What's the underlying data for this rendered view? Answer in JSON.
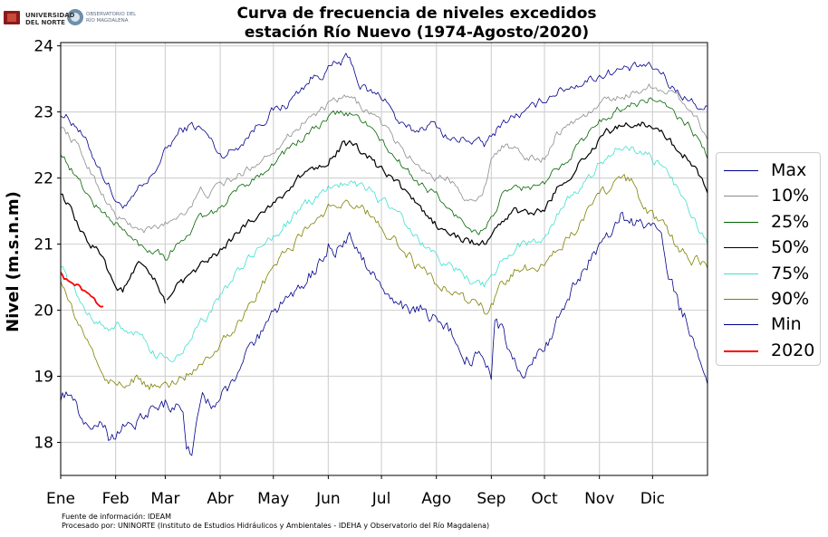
{
  "logos": {
    "left_text": "UNIVERSIDAD\nDEL NORTE",
    "right_text": "OBSERVATORIO DEL\nRÍO MAGDALENA"
  },
  "chart_data": {
    "type": "line",
    "title": "Curva de frecuencia de niveles excedidos",
    "subtitle": "estación Río Nuevo (1974-Agosto/2020)",
    "xlabel": "",
    "ylabel": "Nivel (m.s.n.m)",
    "x_ticks": [
      "Ene",
      "Feb",
      "Mar",
      "Abr",
      "May",
      "Jun",
      "Jul",
      "Ago",
      "Sep",
      "Oct",
      "Nov",
      "Dic"
    ],
    "x_tick_days": [
      1,
      32,
      60,
      91,
      121,
      152,
      182,
      213,
      244,
      274,
      305,
      335
    ],
    "xlim": [
      1,
      366
    ],
    "ylim": [
      17.5,
      24.05
    ],
    "y_ticks": [
      18,
      19,
      20,
      21,
      22,
      23,
      24
    ],
    "grid": true,
    "legend_position": "right",
    "series": [
      {
        "name": "Max",
        "color": "#00008b",
        "width": 0.8,
        "noise": 0.06,
        "x": [
          1,
          10,
          20,
          28,
          33,
          40,
          45,
          50,
          60,
          68,
          75,
          80,
          85,
          91,
          96,
          100,
          105,
          112,
          120,
          128,
          135,
          142,
          150,
          155,
          160,
          162,
          165,
          170,
          175,
          180,
          185,
          190,
          195,
          200,
          207,
          213,
          220,
          225,
          230,
          235,
          240,
          244,
          250,
          258,
          265,
          274,
          280,
          290,
          300,
          305,
          310,
          320,
          325,
          330,
          335,
          340,
          345,
          350,
          355,
          360,
          366
        ],
        "y": [
          23.0,
          22.8,
          22.3,
          21.9,
          21.6,
          21.6,
          21.8,
          21.9,
          22.4,
          22.7,
          22.8,
          22.75,
          22.6,
          22.35,
          22.4,
          22.45,
          22.6,
          22.8,
          23.0,
          23.1,
          23.3,
          23.5,
          23.6,
          23.7,
          23.75,
          23.8,
          23.75,
          23.4,
          23.3,
          23.25,
          23.2,
          22.9,
          22.75,
          22.7,
          22.8,
          22.8,
          22.6,
          22.55,
          22.6,
          22.55,
          22.5,
          22.6,
          22.85,
          22.95,
          23.0,
          23.2,
          23.3,
          23.4,
          23.5,
          23.55,
          23.6,
          23.65,
          23.65,
          23.7,
          23.65,
          23.6,
          23.4,
          23.3,
          23.2,
          23.1,
          23.05
        ]
      },
      {
        "name": "10%",
        "color": "#8c8c8c",
        "width": 0.8,
        "noise": 0.05,
        "x": [
          1,
          10,
          20,
          28,
          33,
          40,
          45,
          50,
          60,
          68,
          75,
          80,
          85,
          91,
          100,
          110,
          120,
          130,
          140,
          150,
          155,
          160,
          165,
          170,
          175,
          180,
          190,
          200,
          213,
          220,
          225,
          230,
          235,
          240,
          244,
          250,
          258,
          265,
          274,
          280,
          290,
          300,
          305,
          310,
          320,
          330,
          335,
          340,
          345,
          350,
          355,
          360,
          366
        ],
        "y": [
          22.8,
          22.5,
          22.0,
          21.6,
          21.4,
          21.3,
          21.2,
          21.2,
          21.3,
          21.45,
          21.6,
          21.8,
          21.75,
          21.9,
          22.0,
          22.2,
          22.4,
          22.65,
          22.9,
          23.05,
          23.15,
          23.2,
          23.2,
          23.1,
          23.0,
          22.9,
          22.55,
          22.25,
          22.0,
          22.0,
          21.9,
          21.7,
          21.6,
          21.85,
          22.3,
          22.5,
          22.4,
          22.3,
          22.3,
          22.65,
          22.85,
          23.0,
          23.1,
          23.2,
          23.25,
          23.35,
          23.4,
          23.35,
          23.3,
          23.2,
          23.1,
          22.9,
          22.6
        ]
      },
      {
        "name": "25%",
        "color": "#006400",
        "width": 0.8,
        "noise": 0.05,
        "x": [
          1,
          10,
          20,
          28,
          33,
          40,
          45,
          50,
          55,
          60,
          65,
          70,
          75,
          80,
          85,
          91,
          100,
          110,
          120,
          130,
          140,
          150,
          155,
          160,
          165,
          170,
          175,
          180,
          190,
          200,
          210,
          213,
          220,
          225,
          230,
          235,
          240,
          244,
          250,
          258,
          265,
          274,
          280,
          290,
          300,
          305,
          310,
          320,
          330,
          335,
          340,
          345,
          350,
          355,
          360,
          366
        ],
        "y": [
          22.4,
          22.0,
          21.6,
          21.4,
          21.3,
          21.1,
          21.0,
          20.9,
          20.95,
          20.8,
          20.95,
          21.1,
          21.2,
          21.45,
          21.4,
          21.55,
          21.8,
          22.0,
          22.2,
          22.45,
          22.65,
          22.85,
          22.95,
          23.0,
          22.95,
          22.9,
          22.8,
          22.6,
          22.3,
          22.0,
          21.8,
          21.75,
          21.5,
          21.4,
          21.3,
          21.2,
          21.2,
          21.4,
          21.7,
          21.85,
          21.85,
          21.9,
          22.1,
          22.4,
          22.7,
          22.85,
          22.95,
          23.1,
          23.15,
          23.2,
          23.15,
          23.0,
          22.9,
          22.8,
          22.6,
          22.35
        ]
      },
      {
        "name": "50%",
        "color": "#000000",
        "width": 1.2,
        "noise": 0.05,
        "x": [
          1,
          5,
          10,
          15,
          20,
          25,
          28,
          32,
          36,
          40,
          45,
          50,
          55,
          60
        ],
        "y": [
          21.8,
          21.6,
          21.3,
          21.05,
          20.95,
          20.85,
          20.6,
          20.35,
          20.3,
          20.45,
          20.7,
          20.55,
          20.4,
          20.1
        ]
      },
      {
        "name": "50%",
        "color": "#000000",
        "width": 1.2,
        "noise": 0.05,
        "x": [
          61,
          66,
          70,
          75,
          80,
          85,
          91,
          100,
          110,
          120,
          130,
          140,
          150,
          155,
          160,
          165,
          170,
          175,
          180,
          190,
          200,
          210,
          220,
          225,
          230,
          240,
          244,
          250,
          258,
          265,
          274,
          280,
          290,
          300,
          305,
          310,
          320,
          330,
          335,
          340,
          345,
          350,
          355,
          360,
          366
        ],
        "y": [
          20.2,
          20.35,
          20.4,
          20.5,
          20.7,
          20.75,
          20.9,
          21.15,
          21.4,
          21.6,
          21.85,
          22.1,
          22.25,
          22.35,
          22.5,
          22.5,
          22.4,
          22.3,
          22.15,
          21.95,
          21.65,
          21.35,
          21.15,
          21.1,
          21.05,
          21.0,
          21.1,
          21.35,
          21.5,
          21.45,
          21.5,
          21.8,
          22.1,
          22.4,
          22.6,
          22.7,
          22.8,
          22.85,
          22.8,
          22.7,
          22.55,
          22.4,
          22.3,
          22.1,
          21.85
        ]
      },
      {
        "name": "75%",
        "color": "#40e0d0",
        "width": 0.8,
        "noise": 0.06,
        "x": [
          1,
          5,
          10,
          15,
          20,
          25,
          28,
          32,
          36,
          40,
          45,
          50,
          55,
          60,
          65,
          70,
          75,
          80,
          85,
          91,
          100,
          110,
          120,
          130,
          140,
          150,
          155,
          160,
          165,
          170,
          175,
          180,
          190,
          200,
          210,
          220,
          225,
          230,
          235,
          240,
          244,
          250,
          258,
          265,
          274,
          280,
          290,
          300,
          305,
          310,
          315,
          320,
          330,
          335,
          340,
          345,
          350,
          355,
          360,
          366
        ],
        "y": [
          20.7,
          20.5,
          20.2,
          20.0,
          19.9,
          19.75,
          19.7,
          19.75,
          19.75,
          19.7,
          19.6,
          19.45,
          19.3,
          19.25,
          19.3,
          19.4,
          19.55,
          19.8,
          19.95,
          20.2,
          20.55,
          20.85,
          21.1,
          21.35,
          21.6,
          21.8,
          21.9,
          21.95,
          21.95,
          21.9,
          21.85,
          21.7,
          21.5,
          21.15,
          20.85,
          20.7,
          20.6,
          20.5,
          20.4,
          20.35,
          20.45,
          20.7,
          21.0,
          21.0,
          21.15,
          21.4,
          21.75,
          22.0,
          22.2,
          22.35,
          22.45,
          22.45,
          22.4,
          22.3,
          22.15,
          22.0,
          21.8,
          21.5,
          21.3,
          21.0
        ]
      },
      {
        "name": "90%",
        "color": "#808000",
        "width": 0.8,
        "noise": 0.07,
        "x": [
          1,
          5,
          10,
          15,
          20,
          25,
          28,
          32,
          36,
          40,
          45,
          50,
          55,
          60,
          65,
          70,
          75,
          80,
          85,
          91,
          100,
          110,
          120,
          130,
          140,
          150,
          155,
          160,
          165,
          170,
          175,
          180,
          190,
          200,
          210,
          220,
          225,
          230,
          235,
          240,
          244,
          250,
          258,
          265,
          274,
          280,
          290,
          300,
          305,
          310,
          315,
          318,
          320,
          325,
          330,
          335,
          340,
          345,
          350,
          355,
          360,
          366
        ],
        "y": [
          20.5,
          20.15,
          19.85,
          19.6,
          19.3,
          19.05,
          18.95,
          18.85,
          18.9,
          18.9,
          18.95,
          18.85,
          18.85,
          18.85,
          18.9,
          19.0,
          19.1,
          19.2,
          19.35,
          19.5,
          19.8,
          20.15,
          20.6,
          20.95,
          21.25,
          21.5,
          21.6,
          21.65,
          21.6,
          21.55,
          21.45,
          21.3,
          21.05,
          20.75,
          20.45,
          20.3,
          20.25,
          20.15,
          20.1,
          20.0,
          20.05,
          20.35,
          20.6,
          20.65,
          20.7,
          20.9,
          21.2,
          21.5,
          21.7,
          21.85,
          22.05,
          22.1,
          22.0,
          21.9,
          21.6,
          21.4,
          21.3,
          21.1,
          20.9,
          20.8,
          20.75,
          20.7
        ]
      },
      {
        "name": "Min",
        "color": "#00008b",
        "width": 0.8,
        "noise": 0.09,
        "x": [
          1,
          5,
          10,
          15,
          20,
          25,
          28,
          32,
          36,
          40,
          45,
          50,
          55,
          60,
          65,
          70,
          72,
          75,
          78,
          82,
          86,
          91,
          100,
          110,
          120,
          130,
          135,
          140,
          145,
          150,
          152,
          155,
          160,
          165,
          170,
          175,
          180,
          185,
          190,
          195,
          200,
          205,
          213,
          220,
          225,
          230,
          233,
          236,
          240,
          244,
          246,
          250,
          255,
          258,
          262,
          265,
          274,
          280,
          290,
          300,
          305,
          310,
          315,
          318,
          320,
          325,
          330,
          335,
          340,
          345,
          350,
          355,
          360,
          366
        ],
        "y": [
          18.7,
          18.8,
          18.5,
          18.35,
          18.3,
          18.3,
          18.1,
          18.15,
          18.25,
          18.3,
          18.35,
          18.45,
          18.55,
          18.6,
          18.6,
          18.5,
          18.0,
          17.8,
          18.4,
          18.7,
          18.55,
          18.65,
          19.0,
          19.45,
          19.85,
          20.2,
          20.35,
          20.5,
          20.65,
          20.75,
          20.95,
          20.85,
          21.0,
          21.1,
          20.95,
          20.6,
          20.4,
          20.2,
          20.1,
          20.0,
          20.0,
          20.0,
          19.9,
          19.7,
          19.5,
          19.3,
          19.25,
          19.4,
          19.1,
          19.0,
          19.8,
          19.7,
          19.3,
          19.2,
          19.1,
          19.1,
          19.4,
          19.75,
          20.3,
          20.8,
          21.0,
          21.15,
          21.3,
          21.5,
          21.4,
          21.3,
          21.25,
          21.2,
          21.0,
          20.5,
          20.0,
          19.8,
          19.4,
          18.75
        ]
      },
      {
        "name": "2020",
        "color": "#ff0000",
        "width": 1.8,
        "noise": 0.03,
        "x": [
          1,
          3,
          5,
          7,
          9,
          11,
          13,
          15,
          17,
          19,
          21,
          23,
          25
        ],
        "y": [
          20.6,
          20.5,
          20.45,
          20.4,
          20.35,
          20.35,
          20.3,
          20.25,
          20.2,
          20.15,
          20.1,
          20.08,
          20.05
        ]
      }
    ]
  },
  "legend": [
    {
      "label": "Max",
      "color": "#00008b"
    },
    {
      "label": "10%",
      "color": "#8c8c8c"
    },
    {
      "label": "25%",
      "color": "#006400"
    },
    {
      "label": "50%",
      "color": "#000000"
    },
    {
      "label": "75%",
      "color": "#40e0d0"
    },
    {
      "label": "90%",
      "color": "#808000"
    },
    {
      "label": "Min",
      "color": "#00008b"
    },
    {
      "label": "2020",
      "color": "#ff0000"
    }
  ],
  "footer": {
    "line1": "Fuente de información: IDEAM",
    "line2": "Procesado por: UNINORTE (Instituto de Estudios Hidráulicos y Ambientales - IDEHA y Observatorio del Río Magdalena)"
  }
}
